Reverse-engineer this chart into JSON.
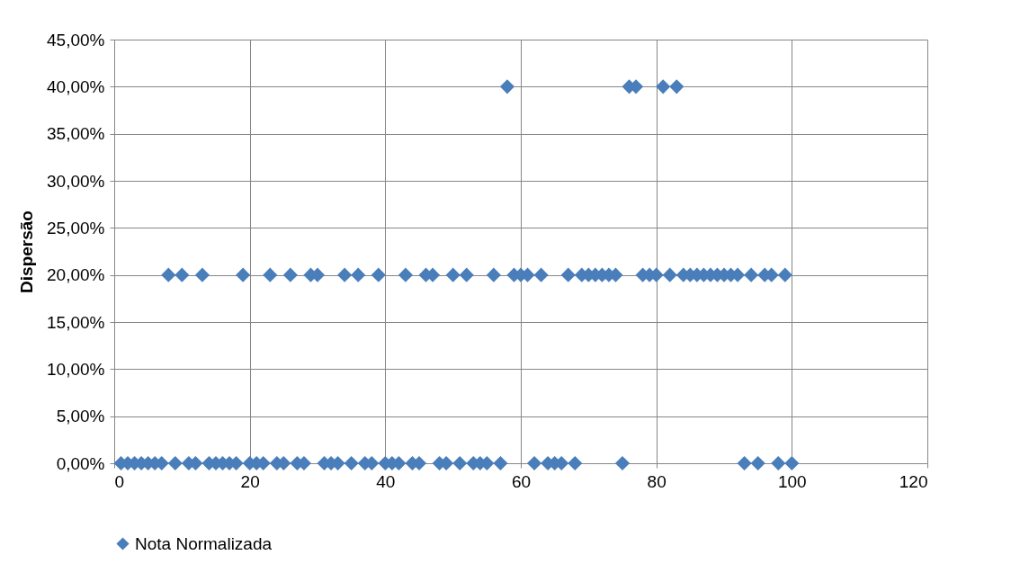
{
  "chart_data": {
    "type": "scatter",
    "ylabel": "Dispersão",
    "x": [
      1,
      2,
      3,
      4,
      5,
      6,
      7,
      8,
      9,
      10,
      11,
      12,
      13,
      14,
      15,
      16,
      17,
      18,
      19,
      20,
      21,
      22,
      23,
      24,
      25,
      26,
      27,
      28,
      29,
      30,
      31,
      32,
      33,
      34,
      35,
      36,
      37,
      38,
      39,
      40,
      41,
      42,
      43,
      44,
      45,
      46,
      47,
      48,
      49,
      50,
      51,
      52,
      53,
      54,
      55,
      56,
      57,
      58,
      59,
      60,
      61,
      62,
      63,
      64,
      65,
      66,
      67,
      68,
      69,
      70,
      71,
      72,
      73,
      74,
      75,
      76,
      77,
      78,
      79,
      80,
      81,
      82,
      83,
      84,
      85,
      86,
      87,
      88,
      89,
      90,
      91,
      92,
      93,
      94,
      95,
      96,
      97,
      98,
      99,
      100
    ],
    "series": [
      {
        "name": "Nota Normalizada",
        "color": "#4a7ebb",
        "values": [
          0,
          0,
          0,
          0,
          0,
          0,
          0,
          20,
          0,
          20,
          0,
          0,
          20,
          0,
          0,
          0,
          0,
          0,
          20,
          0,
          0,
          0,
          20,
          0,
          0,
          20,
          0,
          0,
          20,
          20,
          0,
          0,
          0,
          20,
          0,
          20,
          0,
          0,
          20,
          0,
          0,
          0,
          20,
          0,
          0,
          20,
          20,
          0,
          0,
          20,
          0,
          20,
          0,
          0,
          0,
          20,
          0,
          40,
          20,
          20,
          20,
          0,
          20,
          0,
          0,
          0,
          20,
          0,
          20,
          20,
          20,
          20,
          20,
          20,
          0,
          40,
          40,
          20,
          20,
          20,
          40,
          20,
          40,
          20,
          20,
          20,
          20,
          20,
          20,
          20,
          20,
          20,
          0,
          20,
          0,
          20,
          20,
          0,
          20,
          0
        ]
      }
    ],
    "xlim": [
      0,
      120
    ],
    "xticks": [
      0,
      20,
      40,
      60,
      80,
      100,
      120
    ],
    "ylim": [
      0,
      45
    ],
    "yticks": [
      {
        "value": 0,
        "label": "0,00%"
      },
      {
        "value": 5,
        "label": "5,00%"
      },
      {
        "value": 10,
        "label": "10,00%"
      },
      {
        "value": 15,
        "label": "15,00%"
      },
      {
        "value": 20,
        "label": "20,00%"
      },
      {
        "value": 25,
        "label": "25,00%"
      },
      {
        "value": 30,
        "label": "30,00%"
      },
      {
        "value": 35,
        "label": "35,00%"
      },
      {
        "value": 40,
        "label": "40,00%"
      },
      {
        "value": 45,
        "label": "45,00%"
      }
    ],
    "grid": true,
    "legend": "bottom",
    "marker": "diamond"
  }
}
